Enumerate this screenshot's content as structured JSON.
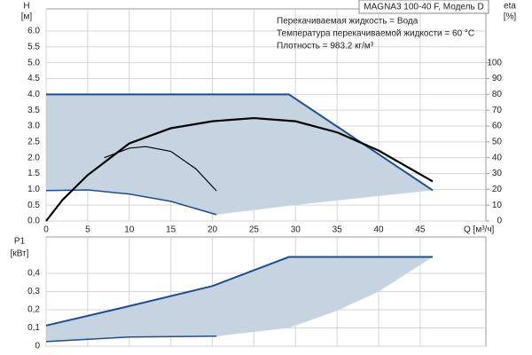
{
  "chart_data": [
    {
      "type": "line",
      "title": "MAGNA3 100-40 F, Модель D",
      "annotations": [
        "Перекачиваемая жидкость = Вода",
        "Температура перекачиваемой жидкости = 60 °C",
        "Плотность = 983.2 кг/м³"
      ],
      "y_label": "H",
      "y_unit": "[м]",
      "y2_label": "eta",
      "y2_unit": "[%]",
      "x_label": "Q [м³/ч]",
      "xlim": [
        0,
        52.9
      ],
      "ylim": [
        0,
        6.7
      ],
      "y2lim": [
        0,
        134
      ],
      "xticks": [
        0,
        5,
        10,
        15,
        20,
        25,
        30,
        35,
        40,
        45
      ],
      "yticks": [
        {
          "value": 0,
          "label": "0.0"
        },
        0.5,
        {
          "value": 1,
          "label": "1.0"
        },
        1.5,
        {
          "value": 2,
          "label": "2.0"
        },
        2.5,
        {
          "value": 3,
          "label": "3.0"
        },
        3.5,
        {
          "value": 4,
          "label": "4.0"
        },
        4.5,
        {
          "value": 5,
          "label": "5.0"
        },
        5.5,
        {
          "value": 6,
          "label": "6.0"
        }
      ],
      "y2ticks": [
        0,
        10,
        20,
        30,
        40,
        50,
        60,
        70,
        80,
        90,
        100
      ],
      "grid": true,
      "area": {
        "color": "#c6d4e1",
        "x": [
          0,
          5,
          10,
          15,
          20.5,
          29.2,
          35,
          40,
          46.5
        ],
        "upper": [
          4,
          4,
          4,
          4,
          4,
          4,
          2.98,
          2.11,
          0.97
        ],
        "lower": [
          0.96,
          0.98,
          0.85,
          0.62,
          0.2,
          0.48,
          0.65,
          0.79,
          0.97
        ]
      },
      "series": [
        {
          "color": "#1f4e8c",
          "line_width": 2,
          "x": [
            0,
            29.2,
            46.5
          ],
          "values": [
            4,
            4,
            0.97
          ]
        },
        {
          "color": "#1f4e8c",
          "line_width": 1.5,
          "x": [
            0,
            5,
            10,
            15,
            20.5
          ],
          "values": [
            0.96,
            0.98,
            0.85,
            0.62,
            0.2
          ]
        },
        {
          "color": "#000000",
          "line_width": 2.2,
          "axis": "y2",
          "x": [
            0,
            2,
            5,
            10,
            15,
            20,
            25,
            30,
            35,
            40,
            46.5
          ],
          "values": [
            0,
            13.5,
            29,
            49,
            58.6,
            63,
            65,
            63,
            56,
            44.5,
            25
          ]
        },
        {
          "color": "#000000",
          "line_width": 1.2,
          "axis": "y2",
          "x": [
            7,
            10,
            12,
            15,
            18,
            20.5
          ],
          "values": [
            40,
            46,
            47,
            44,
            33,
            19
          ]
        }
      ]
    },
    {
      "type": "line",
      "y_label": "P1",
      "y_unit": "[кВт]",
      "xlim": [
        0,
        52.9
      ],
      "ylim": [
        0,
        0.6
      ],
      "yticks": [
        0,
        {
          "value": 0.1,
          "label": "0,1"
        },
        {
          "value": 0.2,
          "label": "0,2"
        },
        {
          "value": 0.3,
          "label": "0,3"
        },
        {
          "value": 0.4,
          "label": "0,4"
        }
      ],
      "grid": true,
      "area": {
        "color": "#c6d4e1",
        "x": [
          0,
          10,
          20,
          20.5,
          29.2,
          35,
          40,
          46.5
        ],
        "upper": [
          0.113,
          0.22,
          0.33,
          0.338,
          0.49,
          0.49,
          0.49,
          0.49
        ],
        "lower": [
          0.025,
          0.05,
          0.055,
          0.055,
          0.1,
          0.195,
          0.3,
          0.49
        ]
      },
      "series": [
        {
          "color": "#1f4e8c",
          "line_width": 2,
          "x": [
            0,
            10,
            20,
            29.2,
            46.5
          ],
          "values": [
            0.113,
            0.22,
            0.33,
            0.49,
            0.49
          ]
        },
        {
          "color": "#1f4e8c",
          "line_width": 1.5,
          "x": [
            0,
            10,
            20.5
          ],
          "values": [
            0.025,
            0.05,
            0.055
          ]
        }
      ]
    }
  ]
}
